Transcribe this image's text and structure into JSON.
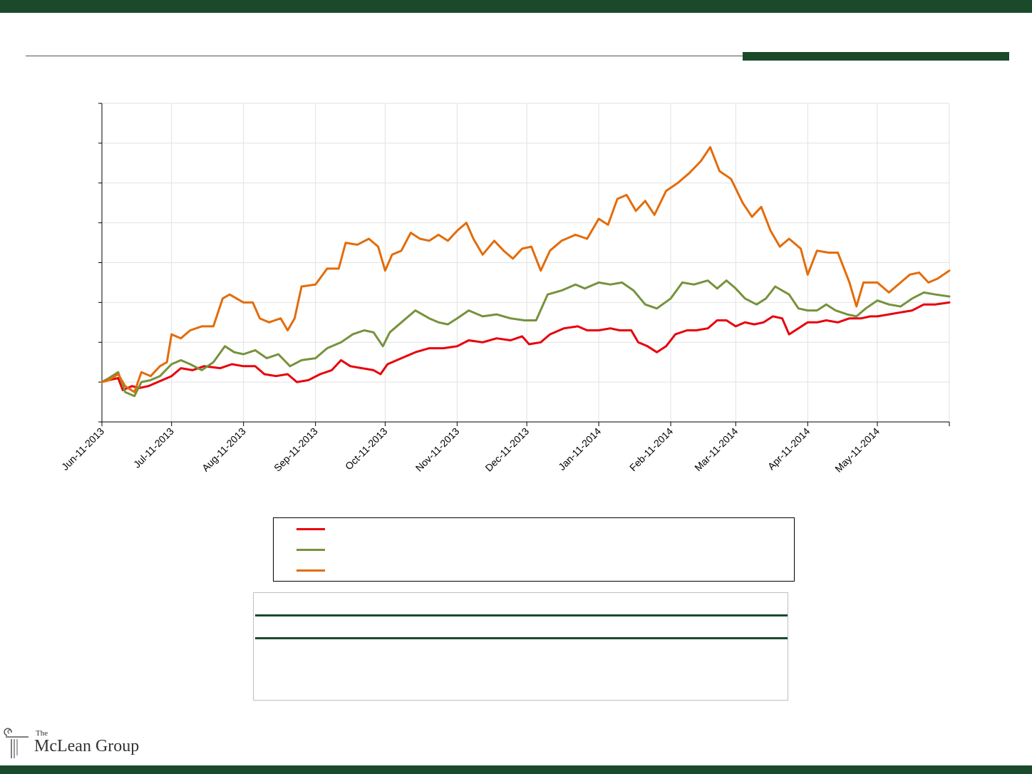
{
  "header": {
    "bar_color": "#1a4a2a"
  },
  "chart_data": {
    "type": "line",
    "title": "",
    "xlabel": "",
    "ylabel": "",
    "x_ticks": [
      "Jun-11-2013",
      "Jul-11-2013",
      "Aug-11-2013",
      "Sep-11-2013",
      "Oct-11-2013",
      "Nov-11-2013",
      "Dec-11-2013",
      "Jan-11-2014",
      "Feb-11-2014",
      "Mar-11-2014",
      "Apr-11-2014",
      "May-11-2014"
    ],
    "x_range": [
      "2013-06-11",
      "2014-06-11"
    ],
    "y_range": [
      0,
      8
    ],
    "grid": true,
    "legend": "below",
    "series": [
      {
        "color": "#e8000b",
        "points": [
          [
            "2013-06-11",
            1.0
          ],
          [
            "2013-06-14",
            1.05
          ],
          [
            "2013-06-18",
            1.1
          ],
          [
            "2013-06-20",
            0.8
          ],
          [
            "2013-06-24",
            0.9
          ],
          [
            "2013-06-27",
            0.85
          ],
          [
            "2013-07-01",
            0.9
          ],
          [
            "2013-07-05",
            1.0
          ],
          [
            "2013-07-11",
            1.15
          ],
          [
            "2013-07-15",
            1.35
          ],
          [
            "2013-07-20",
            1.3
          ],
          [
            "2013-07-25",
            1.4
          ],
          [
            "2013-08-01",
            1.35
          ],
          [
            "2013-08-06",
            1.45
          ],
          [
            "2013-08-11",
            1.4
          ],
          [
            "2013-08-16",
            1.4
          ],
          [
            "2013-08-20",
            1.2
          ],
          [
            "2013-08-25",
            1.15
          ],
          [
            "2013-08-30",
            1.2
          ],
          [
            "2013-09-03",
            1.0
          ],
          [
            "2013-09-08",
            1.05
          ],
          [
            "2013-09-13",
            1.2
          ],
          [
            "2013-09-18",
            1.3
          ],
          [
            "2013-09-22",
            1.55
          ],
          [
            "2013-09-26",
            1.4
          ],
          [
            "2013-10-01",
            1.35
          ],
          [
            "2013-10-06",
            1.3
          ],
          [
            "2013-10-09",
            1.2
          ],
          [
            "2013-10-12",
            1.45
          ],
          [
            "2013-10-18",
            1.6
          ],
          [
            "2013-10-24",
            1.75
          ],
          [
            "2013-10-30",
            1.85
          ],
          [
            "2013-11-05",
            1.85
          ],
          [
            "2013-11-11",
            1.9
          ],
          [
            "2013-11-16",
            2.05
          ],
          [
            "2013-11-22",
            2.0
          ],
          [
            "2013-11-28",
            2.1
          ],
          [
            "2013-12-04",
            2.05
          ],
          [
            "2013-12-09",
            2.15
          ],
          [
            "2013-12-12",
            1.95
          ],
          [
            "2013-12-17",
            2.0
          ],
          [
            "2013-12-21",
            2.2
          ],
          [
            "2013-12-27",
            2.35
          ],
          [
            "2014-01-02",
            2.4
          ],
          [
            "2014-01-06",
            2.3
          ],
          [
            "2014-01-11",
            2.3
          ],
          [
            "2014-01-16",
            2.35
          ],
          [
            "2014-01-20",
            2.3
          ],
          [
            "2014-01-25",
            2.3
          ],
          [
            "2014-01-28",
            2.0
          ],
          [
            "2014-02-01",
            1.9
          ],
          [
            "2014-02-05",
            1.75
          ],
          [
            "2014-02-09",
            1.9
          ],
          [
            "2014-02-13",
            2.2
          ],
          [
            "2014-02-18",
            2.3
          ],
          [
            "2014-02-22",
            2.3
          ],
          [
            "2014-02-27",
            2.35
          ],
          [
            "2014-03-03",
            2.55
          ],
          [
            "2014-03-07",
            2.55
          ],
          [
            "2014-03-11",
            2.4
          ],
          [
            "2014-03-15",
            2.5
          ],
          [
            "2014-03-19",
            2.45
          ],
          [
            "2014-03-23",
            2.5
          ],
          [
            "2014-03-27",
            2.65
          ],
          [
            "2014-03-31",
            2.6
          ],
          [
            "2014-04-03",
            2.2
          ],
          [
            "2014-04-07",
            2.35
          ],
          [
            "2014-04-11",
            2.5
          ],
          [
            "2014-04-15",
            2.5
          ],
          [
            "2014-04-19",
            2.55
          ],
          [
            "2014-04-24",
            2.5
          ],
          [
            "2014-04-29",
            2.6
          ],
          [
            "2014-05-04",
            2.6
          ],
          [
            "2014-05-08",
            2.65
          ],
          [
            "2014-05-11",
            2.65
          ],
          [
            "2014-05-16",
            2.7
          ],
          [
            "2014-05-21",
            2.75
          ],
          [
            "2014-05-26",
            2.8
          ],
          [
            "2014-05-31",
            2.95
          ],
          [
            "2014-06-05",
            2.95
          ],
          [
            "2014-06-11",
            3.0
          ]
        ]
      },
      {
        "color": "#76923c",
        "points": [
          [
            "2013-06-11",
            1.0
          ],
          [
            "2013-06-14",
            1.1
          ],
          [
            "2013-06-18",
            1.25
          ],
          [
            "2013-06-21",
            0.75
          ],
          [
            "2013-06-25",
            0.65
          ],
          [
            "2013-06-28",
            1.0
          ],
          [
            "2013-07-02",
            1.05
          ],
          [
            "2013-07-06",
            1.15
          ],
          [
            "2013-07-11",
            1.45
          ],
          [
            "2013-07-15",
            1.55
          ],
          [
            "2013-07-19",
            1.45
          ],
          [
            "2013-07-24",
            1.3
          ],
          [
            "2013-07-29",
            1.5
          ],
          [
            "2013-08-03",
            1.9
          ],
          [
            "2013-08-07",
            1.75
          ],
          [
            "2013-08-11",
            1.7
          ],
          [
            "2013-08-16",
            1.8
          ],
          [
            "2013-08-21",
            1.6
          ],
          [
            "2013-08-26",
            1.7
          ],
          [
            "2013-08-31",
            1.4
          ],
          [
            "2013-09-05",
            1.55
          ],
          [
            "2013-09-11",
            1.6
          ],
          [
            "2013-09-16",
            1.85
          ],
          [
            "2013-09-22",
            2.0
          ],
          [
            "2013-09-27",
            2.2
          ],
          [
            "2013-10-02",
            2.3
          ],
          [
            "2013-10-06",
            2.25
          ],
          [
            "2013-10-10",
            1.9
          ],
          [
            "2013-10-13",
            2.25
          ],
          [
            "2013-10-18",
            2.5
          ],
          [
            "2013-10-24",
            2.8
          ],
          [
            "2013-10-30",
            2.6
          ],
          [
            "2013-11-03",
            2.5
          ],
          [
            "2013-11-07",
            2.45
          ],
          [
            "2013-11-11",
            2.6
          ],
          [
            "2013-11-16",
            2.8
          ],
          [
            "2013-11-22",
            2.65
          ],
          [
            "2013-11-28",
            2.7
          ],
          [
            "2013-12-04",
            2.6
          ],
          [
            "2013-12-10",
            2.55
          ],
          [
            "2013-12-15",
            2.55
          ],
          [
            "2013-12-20",
            3.2
          ],
          [
            "2013-12-26",
            3.3
          ],
          [
            "2014-01-01",
            3.45
          ],
          [
            "2014-01-05",
            3.35
          ],
          [
            "2014-01-11",
            3.5
          ],
          [
            "2014-01-16",
            3.45
          ],
          [
            "2014-01-21",
            3.5
          ],
          [
            "2014-01-26",
            3.3
          ],
          [
            "2014-01-31",
            2.95
          ],
          [
            "2014-02-05",
            2.85
          ],
          [
            "2014-02-11",
            3.1
          ],
          [
            "2014-02-16",
            3.5
          ],
          [
            "2014-02-21",
            3.45
          ],
          [
            "2014-02-27",
            3.55
          ],
          [
            "2014-03-03",
            3.35
          ],
          [
            "2014-03-07",
            3.55
          ],
          [
            "2014-03-11",
            3.35
          ],
          [
            "2014-03-15",
            3.1
          ],
          [
            "2014-03-20",
            2.95
          ],
          [
            "2014-03-24",
            3.1
          ],
          [
            "2014-03-28",
            3.4
          ],
          [
            "2014-04-03",
            3.2
          ],
          [
            "2014-04-07",
            2.85
          ],
          [
            "2014-04-11",
            2.8
          ],
          [
            "2014-04-15",
            2.8
          ],
          [
            "2014-04-19",
            2.95
          ],
          [
            "2014-04-23",
            2.8
          ],
          [
            "2014-04-28",
            2.7
          ],
          [
            "2014-05-02",
            2.65
          ],
          [
            "2014-05-06",
            2.85
          ],
          [
            "2014-05-11",
            3.05
          ],
          [
            "2014-05-16",
            2.95
          ],
          [
            "2014-05-21",
            2.9
          ],
          [
            "2014-05-26",
            3.1
          ],
          [
            "2014-05-31",
            3.25
          ],
          [
            "2014-06-05",
            3.2
          ],
          [
            "2014-06-11",
            3.15
          ]
        ]
      },
      {
        "color": "#e36c0a",
        "points": [
          [
            "2013-06-11",
            1.0
          ],
          [
            "2013-06-14",
            1.05
          ],
          [
            "2013-06-18",
            1.2
          ],
          [
            "2013-06-21",
            0.9
          ],
          [
            "2013-06-25",
            0.75
          ],
          [
            "2013-06-28",
            1.25
          ],
          [
            "2013-07-02",
            1.15
          ],
          [
            "2013-07-06",
            1.4
          ],
          [
            "2013-07-09",
            1.5
          ],
          [
            "2013-07-11",
            2.2
          ],
          [
            "2013-07-15",
            2.1
          ],
          [
            "2013-07-19",
            2.3
          ],
          [
            "2013-07-24",
            2.4
          ],
          [
            "2013-07-29",
            2.4
          ],
          [
            "2013-08-02",
            3.1
          ],
          [
            "2013-08-05",
            3.2
          ],
          [
            "2013-08-11",
            3.0
          ],
          [
            "2013-08-15",
            3.0
          ],
          [
            "2013-08-18",
            2.6
          ],
          [
            "2013-08-22",
            2.5
          ],
          [
            "2013-08-27",
            2.6
          ],
          [
            "2013-08-30",
            2.3
          ],
          [
            "2013-09-02",
            2.6
          ],
          [
            "2013-09-05",
            3.4
          ],
          [
            "2013-09-11",
            3.45
          ],
          [
            "2013-09-16",
            3.85
          ],
          [
            "2013-09-21",
            3.85
          ],
          [
            "2013-09-24",
            4.5
          ],
          [
            "2013-09-29",
            4.45
          ],
          [
            "2013-10-04",
            4.6
          ],
          [
            "2013-10-08",
            4.4
          ],
          [
            "2013-10-11",
            3.8
          ],
          [
            "2013-10-14",
            4.2
          ],
          [
            "2013-10-18",
            4.3
          ],
          [
            "2013-10-22",
            4.75
          ],
          [
            "2013-10-26",
            4.6
          ],
          [
            "2013-10-30",
            4.55
          ],
          [
            "2013-11-03",
            4.7
          ],
          [
            "2013-11-07",
            4.55
          ],
          [
            "2013-11-11",
            4.8
          ],
          [
            "2013-11-15",
            5.0
          ],
          [
            "2013-11-18",
            4.6
          ],
          [
            "2013-11-22",
            4.2
          ],
          [
            "2013-11-27",
            4.55
          ],
          [
            "2013-12-01",
            4.3
          ],
          [
            "2013-12-05",
            4.1
          ],
          [
            "2013-12-09",
            4.35
          ],
          [
            "2013-12-13",
            4.4
          ],
          [
            "2013-12-17",
            3.8
          ],
          [
            "2013-12-21",
            4.3
          ],
          [
            "2013-12-26",
            4.55
          ],
          [
            "2014-01-01",
            4.7
          ],
          [
            "2014-01-06",
            4.6
          ],
          [
            "2014-01-11",
            5.1
          ],
          [
            "2014-01-15",
            4.95
          ],
          [
            "2014-01-19",
            5.6
          ],
          [
            "2014-01-23",
            5.7
          ],
          [
            "2014-01-27",
            5.3
          ],
          [
            "2014-01-31",
            5.55
          ],
          [
            "2014-02-04",
            5.2
          ],
          [
            "2014-02-09",
            5.8
          ],
          [
            "2014-02-14",
            6.0
          ],
          [
            "2014-02-19",
            6.25
          ],
          [
            "2014-02-24",
            6.55
          ],
          [
            "2014-02-28",
            6.9
          ],
          [
            "2014-03-04",
            6.3
          ],
          [
            "2014-03-09",
            6.1
          ],
          [
            "2014-03-14",
            5.5
          ],
          [
            "2014-03-18",
            5.15
          ],
          [
            "2014-03-22",
            5.4
          ],
          [
            "2014-03-26",
            4.8
          ],
          [
            "2014-03-30",
            4.4
          ],
          [
            "2014-04-03",
            4.6
          ],
          [
            "2014-04-08",
            4.35
          ],
          [
            "2014-04-11",
            3.7
          ],
          [
            "2014-04-15",
            4.3
          ],
          [
            "2014-04-20",
            4.25
          ],
          [
            "2014-04-24",
            4.25
          ],
          [
            "2014-04-29",
            3.5
          ],
          [
            "2014-05-02",
            2.9
          ],
          [
            "2014-05-05",
            3.5
          ],
          [
            "2014-05-11",
            3.5
          ],
          [
            "2014-05-16",
            3.25
          ],
          [
            "2014-05-21",
            3.5
          ],
          [
            "2014-05-25",
            3.7
          ],
          [
            "2014-05-29",
            3.75
          ],
          [
            "2014-06-02",
            3.5
          ],
          [
            "2014-06-06",
            3.6
          ],
          [
            "2014-06-11",
            3.8
          ]
        ]
      }
    ]
  },
  "legend": {
    "entries": [
      {
        "color": "#e8000b",
        "label": ""
      },
      {
        "color": "#76923c",
        "label": ""
      },
      {
        "color": "#e36c0a",
        "label": ""
      }
    ]
  },
  "footer": {
    "logo_the": "The",
    "logo_name": "McLean Group",
    "bar_color": "#1a4a2a"
  }
}
